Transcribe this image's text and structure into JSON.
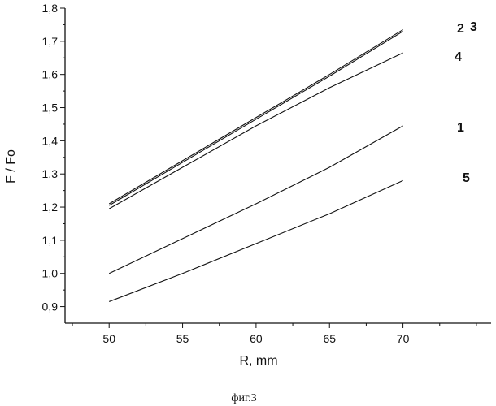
{
  "chart_data": {
    "type": "line",
    "xlabel": "R, mm",
    "ylabel": "F / Fo",
    "caption": "фиг.3",
    "xlim": [
      47,
      76
    ],
    "ylim": [
      0.85,
      1.8
    ],
    "x_ticks": [
      50,
      55,
      60,
      65,
      70
    ],
    "x_tick_labels": [
      "50",
      "55",
      "60",
      "65",
      "70"
    ],
    "y_ticks": [
      0.9,
      1.0,
      1.1,
      1.2,
      1.3,
      1.4,
      1.5,
      1.6,
      1.7,
      1.8
    ],
    "y_tick_labels": [
      "0,9",
      "1,0",
      "1,1",
      "1,2",
      "1,3",
      "1,4",
      "1,5",
      "1,6",
      "1,7",
      "1,8"
    ],
    "grid": false,
    "series": [
      {
        "name": "1",
        "x": [
          50,
          55,
          60,
          65,
          70
        ],
        "y": [
          1.0,
          1.105,
          1.21,
          1.32,
          1.445
        ]
      },
      {
        "name": "2",
        "x": [
          50,
          55,
          60,
          65,
          70
        ],
        "y": [
          1.21,
          1.34,
          1.47,
          1.6,
          1.735
        ]
      },
      {
        "name": "3",
        "x": [
          50,
          55,
          60,
          65,
          70
        ],
        "y": [
          1.205,
          1.335,
          1.465,
          1.595,
          1.73
        ]
      },
      {
        "name": "4",
        "x": [
          50,
          55,
          60,
          65,
          70
        ],
        "y": [
          1.195,
          1.32,
          1.445,
          1.56,
          1.665
        ]
      },
      {
        "name": "5",
        "x": [
          50,
          55,
          60,
          65,
          70
        ],
        "y": [
          0.915,
          1.0,
          1.09,
          1.18,
          1.28
        ]
      }
    ]
  }
}
